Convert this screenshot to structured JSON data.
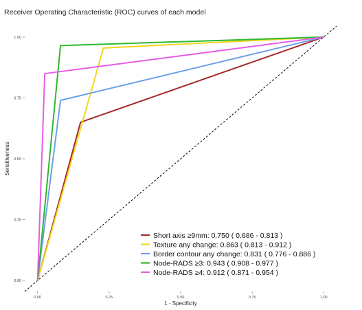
{
  "chart_data": {
    "type": "line",
    "title": "Receiver Operating Characteristic (ROC) curves of each model",
    "xlabel": "1 - Specificity",
    "ylabel": "Sensitiveness",
    "xlim": [
      0,
      1
    ],
    "ylim": [
      0,
      1
    ],
    "x_ticks": [
      "0.00",
      "0.25",
      "0.50",
      "0.75",
      "1.00"
    ],
    "y_ticks": [
      "0.00",
      "0.25",
      "0.50",
      "0.75",
      "1.00"
    ],
    "grid": false,
    "legend_position": "bottom-right",
    "reference_line": {
      "style": "dashed",
      "color": "#000000",
      "from": [
        0,
        0
      ],
      "to": [
        1,
        1
      ]
    },
    "series": [
      {
        "name": "Short axis ≥9mm: 0.750 ( 0.686 - 0.813 )",
        "color": "#A52A2A",
        "x": [
          0,
          0.15,
          1
        ],
        "y": [
          0,
          0.65,
          1
        ]
      },
      {
        "name": "Texture any change: 0.863 ( 0.813 - 0.912 )",
        "color": "#F2D61E",
        "x": [
          0,
          0.23,
          1
        ],
        "y": [
          0,
          0.955,
          1
        ]
      },
      {
        "name": "Border contour any change: 0.831 ( 0.776 - 0.886 )",
        "color": "#6AA0E8",
        "x": [
          0,
          0.08,
          1
        ],
        "y": [
          0,
          0.74,
          1
        ]
      },
      {
        "name": "Node-RADS ≥3: 0.943 ( 0.908 - 0.977 )",
        "color": "#2DB82D",
        "x": [
          0,
          0.08,
          1
        ],
        "y": [
          0,
          0.965,
          1
        ]
      },
      {
        "name": "Node-RADS ≥4: 0.912 ( 0.871 - 0.954 )",
        "color": "#E65CE6",
        "x": [
          0,
          0.025,
          1
        ],
        "y": [
          0,
          0.85,
          1
        ]
      }
    ]
  }
}
